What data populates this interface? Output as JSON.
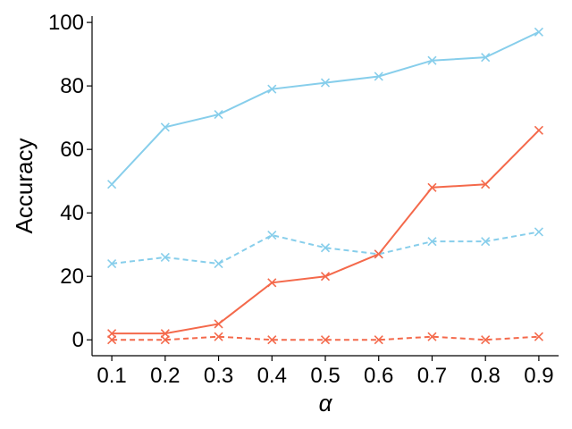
{
  "chart_data": {
    "type": "line",
    "xlabel": "α",
    "ylabel": "Accuracy",
    "x": [
      0.1,
      0.2,
      0.3,
      0.4,
      0.5,
      0.6,
      0.7,
      0.8,
      0.9
    ],
    "x_tick_labels": [
      "0.1",
      "0.2",
      "0.3",
      "0.4",
      "0.5",
      "0.6",
      "0.7",
      "0.8",
      "0.9"
    ],
    "y_ticks": [
      0,
      20,
      40,
      60,
      80,
      100
    ],
    "y_tick_labels": [
      "0",
      "20",
      "40",
      "60",
      "80",
      "100"
    ],
    "xlim": [
      0.063,
      0.937
    ],
    "ylim": [
      -5,
      102
    ],
    "grid": false,
    "series": [
      {
        "color": "#87CEEB",
        "line_style": "solid",
        "marker": "x",
        "values": [
          49,
          67,
          71,
          79,
          81,
          83,
          88,
          89,
          97
        ]
      },
      {
        "color": "#87CEEB",
        "line_style": "dashed",
        "marker": "x",
        "values": [
          24,
          26,
          24,
          33,
          29,
          27,
          31,
          31,
          34
        ]
      },
      {
        "color": "#F4694B",
        "line_style": "solid",
        "marker": "x",
        "values": [
          2,
          2,
          5,
          18,
          20,
          27,
          48,
          49,
          66
        ]
      },
      {
        "color": "#F4694B",
        "line_style": "dashed",
        "marker": "x",
        "values": [
          0,
          0,
          1,
          0,
          0,
          0,
          1,
          0,
          1
        ]
      }
    ]
  }
}
